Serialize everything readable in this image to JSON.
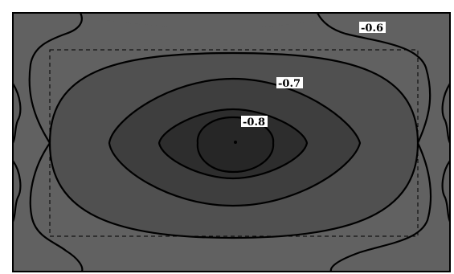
{
  "chart_data": {
    "type": "contour",
    "levels": [
      -0.6,
      -0.7,
      -0.8
    ],
    "level_labels": [
      "-0.6",
      "-0.7",
      "-0.8"
    ],
    "colors": {
      "background": "#616161",
      "band_0.7": "#505050",
      "band_0.8": "#3e3e3e",
      "band_inner": "#2d2d2d",
      "line": "#000000",
      "frame": "#000000"
    },
    "dashed_rectangle": true,
    "grid": false,
    "legend": "none"
  }
}
